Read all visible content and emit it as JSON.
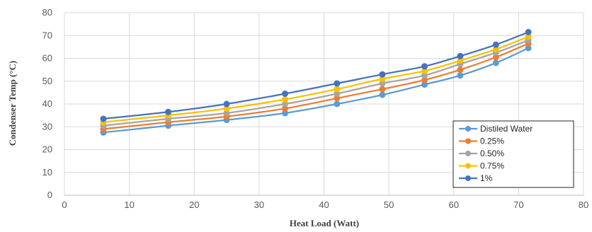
{
  "chart_data": {
    "type": "line",
    "xlabel": "Heat Load (Watt)",
    "ylabel": "Condenser Temp (°C)",
    "xlim": [
      0,
      80
    ],
    "ylim": [
      0,
      80
    ],
    "x_ticks": [
      "0",
      "10",
      "20",
      "30",
      "40",
      "50",
      "60",
      "70",
      "80"
    ],
    "y_ticks": [
      "0",
      "10",
      "20",
      "30",
      "40",
      "50",
      "60",
      "70",
      "80"
    ],
    "grid": true,
    "legend_position": "bottom-right",
    "x": [
      6,
      16,
      25,
      34,
      42,
      49,
      55.5,
      61,
      66.5,
      71.5
    ],
    "series": [
      {
        "name": "Distiled Water",
        "color": "#5B9BD5",
        "values": [
          27.5,
          30.5,
          33,
          36,
          40,
          44,
          48.5,
          52.5,
          58,
          64.5
        ]
      },
      {
        "name": "0.25%",
        "color": "#ED7D31",
        "values": [
          29,
          32,
          34.5,
          38,
          42.5,
          46.5,
          50.5,
          55,
          60.5,
          66.5
        ]
      },
      {
        "name": "0.50%",
        "color": "#A5A5A5",
        "values": [
          30.5,
          33.5,
          36,
          40,
          44.5,
          49,
          52.5,
          57.5,
          62.5,
          68
        ]
      },
      {
        "name": "0.75%",
        "color": "#FFC000",
        "values": [
          32,
          35,
          38,
          42,
          46.5,
          51,
          54.5,
          59,
          64,
          69.5
        ]
      },
      {
        "name": "1%",
        "color": "#4472C4",
        "values": [
          33.5,
          36.5,
          40,
          44.5,
          49,
          53,
          56.5,
          61,
          66,
          71.5
        ]
      }
    ]
  }
}
